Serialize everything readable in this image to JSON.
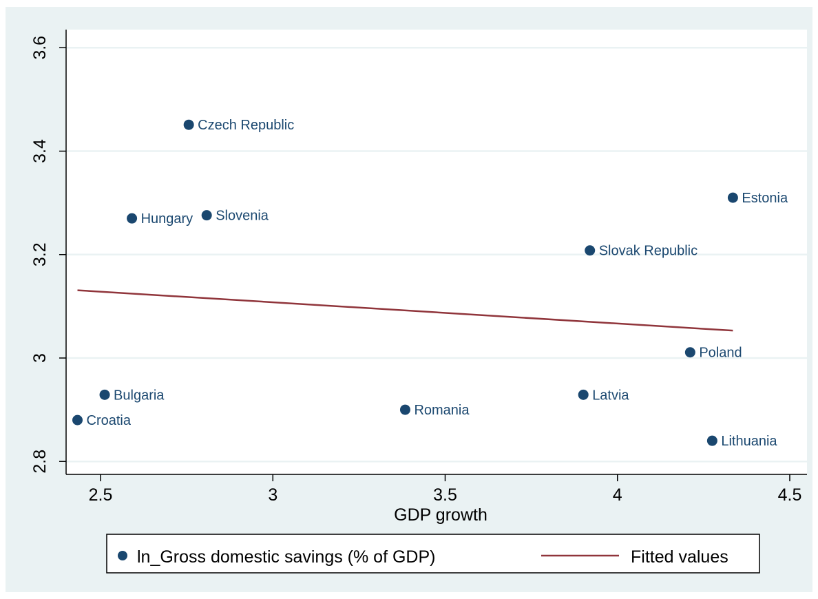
{
  "chart_data": {
    "type": "scatter",
    "xlabel": "GDP growth",
    "ylabel": "",
    "xlim": [
      2.4,
      4.55
    ],
    "ylim": [
      2.775,
      3.635
    ],
    "xticks": [
      2.5,
      3,
      3.5,
      4,
      4.5
    ],
    "xtick_labels": [
      "2.5",
      "3",
      "3.5",
      "4",
      "4.5"
    ],
    "yticks": [
      2.8,
      3.0,
      3.2,
      3.4,
      3.6
    ],
    "ytick_labels": [
      "2.8",
      "3",
      "3.2",
      "3.4",
      "3.6"
    ],
    "grid": true,
    "legend_position": "bottom",
    "series": [
      {
        "name": "ln_Gross domestic savings (% of GDP)",
        "kind": "scatter",
        "color": "#1a476f",
        "points": [
          {
            "label": "Czech Republic",
            "x": 2.756,
            "y": 3.451
          },
          {
            "label": "Hungary",
            "x": 2.591,
            "y": 3.27
          },
          {
            "label": "Slovenia",
            "x": 2.808,
            "y": 3.276
          },
          {
            "label": "Estonia",
            "x": 4.335,
            "y": 3.31
          },
          {
            "label": "Slovak Republic",
            "x": 3.92,
            "y": 3.208
          },
          {
            "label": "Poland",
            "x": 4.211,
            "y": 3.011
          },
          {
            "label": "Bulgaria",
            "x": 2.512,
            "y": 2.929
          },
          {
            "label": "Croatia",
            "x": 2.433,
            "y": 2.88
          },
          {
            "label": "Romania",
            "x": 3.384,
            "y": 2.9
          },
          {
            "label": "Latvia",
            "x": 3.901,
            "y": 2.929
          },
          {
            "label": "Lithuania",
            "x": 4.275,
            "y": 2.84
          }
        ]
      },
      {
        "name": "Fitted values",
        "kind": "line",
        "color": "#90353b",
        "points": [
          {
            "x": 2.433,
            "y": 3.131
          },
          {
            "x": 4.335,
            "y": 3.053
          }
        ]
      }
    ]
  }
}
